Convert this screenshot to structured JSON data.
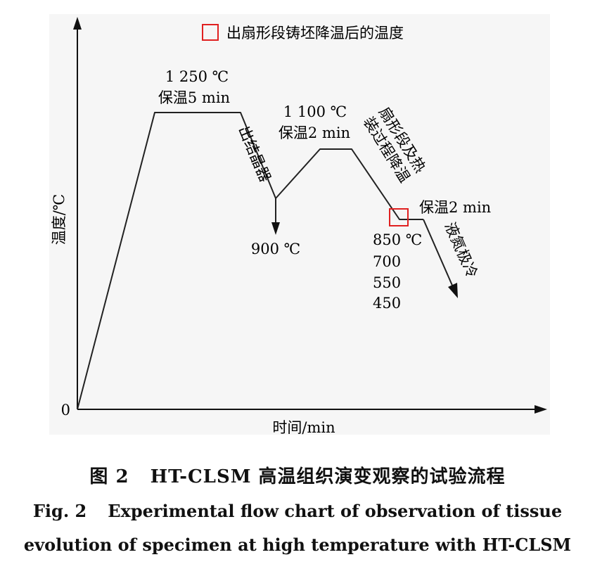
{
  "legend": {
    "label": "出扇形段铸坯降温后的温度",
    "color": "#e02020"
  },
  "axes": {
    "y_label": "温度/℃",
    "x_label": "时间/min",
    "origin": "0"
  },
  "annotations": {
    "peak1_temp": "1 250 ℃",
    "peak1_hold": "保温5 min",
    "exit_crystallizer": "出结晶器",
    "valley_temp": "900 ℃",
    "peak2_temp": "1 100 ℃",
    "peak2_hold": "保温2 min",
    "sector_line1": "扇形段及热",
    "sector_line2": "装过程降温",
    "hold3": "保温2 min",
    "quench": "液氮极冷",
    "temps": [
      "850 ℃",
      "700",
      "550",
      "450"
    ]
  },
  "caption": {
    "cn_num": "图 2",
    "cn_text": "HT-CLSM 高温组织演变观察的试验流程",
    "en_num": "Fig. 2",
    "en_line1": "Experimental flow chart of observation of tissue",
    "en_line2": "evolution of specimen at high temperature with HT-CLSM"
  }
}
